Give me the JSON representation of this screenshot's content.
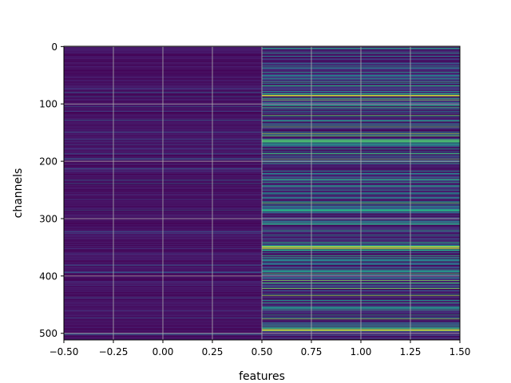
{
  "chart_data": {
    "type": "heatmap",
    "title": "",
    "xlabel": "features",
    "ylabel": "channels",
    "x_range": [
      -0.5,
      1.5
    ],
    "y_range": [
      511.5,
      -0.5
    ],
    "y_inverted": true,
    "grid": true,
    "colormap": "viridis",
    "columns": 2,
    "rows": 512,
    "x_ticks": [
      -0.5,
      -0.25,
      0.0,
      0.25,
      0.5,
      0.75,
      1.0,
      1.25,
      1.5
    ],
    "x_tick_labels": [
      "−0.50",
      "−0.25",
      "0.00",
      "0.25",
      "0.50",
      "0.75",
      "1.00",
      "1.25",
      "1.50"
    ],
    "y_ticks": [
      0,
      100,
      200,
      300,
      400,
      500
    ],
    "y_tick_labels": [
      "0",
      "100",
      "200",
      "300",
      "400",
      "500"
    ],
    "column_summary": [
      {
        "feature": 0,
        "typical_value": 0.08,
        "note": "mostly dark purple with faint streaks"
      },
      {
        "feature": 1,
        "typical_value": 0.35,
        "note": "many teal/green bands, yellow bands near rows 85, 350, 495"
      }
    ],
    "colors": {
      "low": "#440154",
      "mid": "#21918c",
      "high": "#fde725"
    }
  }
}
